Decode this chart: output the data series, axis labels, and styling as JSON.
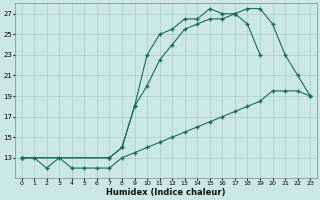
{
  "xlabel": "Humidex (Indice chaleur)",
  "background_color": "#cce8e6",
  "grid_color": "#aacfcc",
  "line_color": "#1a6b5e",
  "xlim": [
    -0.5,
    23.5
  ],
  "ylim": [
    11,
    28
  ],
  "yticks": [
    13,
    15,
    17,
    19,
    21,
    23,
    25,
    27
  ],
  "xticks": [
    0,
    1,
    2,
    3,
    4,
    5,
    6,
    7,
    8,
    9,
    10,
    11,
    12,
    13,
    14,
    15,
    16,
    17,
    18,
    19,
    20,
    21,
    22,
    23
  ],
  "line1_x": [
    0,
    1,
    2,
    3,
    4,
    5,
    6,
    7,
    8,
    9,
    10,
    11,
    12,
    13,
    14,
    15,
    16,
    17,
    18,
    19,
    20,
    21,
    22,
    23
  ],
  "line1_y": [
    13,
    13,
    12,
    13,
    12,
    12,
    12,
    12,
    13,
    13.5,
    14,
    14.5,
    15,
    15.5,
    16,
    16.5,
    17,
    17.5,
    18,
    18.5,
    19.5,
    19.5,
    19.5,
    19
  ],
  "line2_x": [
    0,
    7,
    8,
    9,
    10,
    11,
    12,
    13,
    14,
    15,
    16,
    17,
    18,
    19,
    20,
    21,
    22,
    23
  ],
  "line2_y": [
    13,
    13,
    14,
    18,
    23,
    25,
    25.5,
    26.5,
    26.5,
    27.5,
    27,
    27,
    27.5,
    27.5,
    26,
    23,
    21,
    19
  ],
  "line3_x": [
    0,
    7,
    8,
    9,
    10,
    11,
    12,
    13,
    14,
    15,
    16,
    17,
    18,
    19
  ],
  "line3_y": [
    13,
    13,
    14,
    18,
    20,
    22.5,
    24,
    25.5,
    26,
    26.5,
    26.5,
    27,
    26,
    23
  ]
}
